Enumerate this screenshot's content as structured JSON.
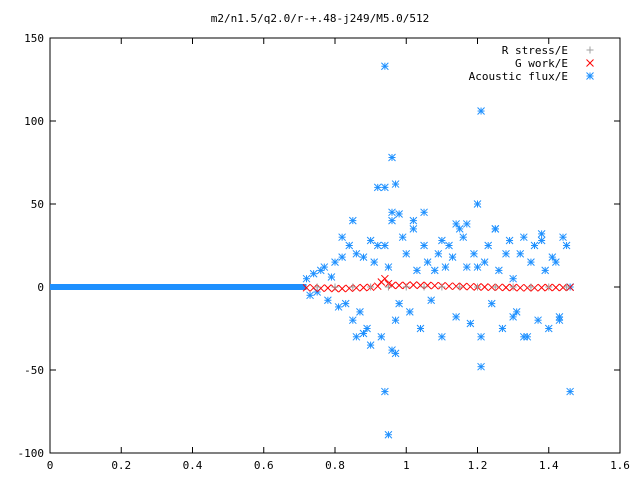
{
  "chart_data": {
    "type": "scatter",
    "title": "m2/n1.5/q2.0/r-+.48-j249/M5.0/512",
    "xlabel": "",
    "ylabel": "",
    "xlim": [
      0,
      1.6
    ],
    "ylim": [
      -100,
      150
    ],
    "x_ticks": [
      "0",
      "0.2",
      "0.4",
      "0.6",
      "0.8",
      "1",
      "1.2",
      "1.4",
      "1.6"
    ],
    "y_ticks": [
      "150",
      "100",
      "50",
      "0",
      "-50",
      "-100"
    ],
    "grid": false,
    "legend_position": "top-right",
    "series": [
      {
        "name": "R stress/E",
        "marker": "plus",
        "color": "#a0a0a0",
        "x": [
          0.75,
          0.8,
          0.85,
          0.9,
          0.95,
          1.0,
          1.05,
          1.1,
          1.15,
          1.2,
          1.25,
          1.3,
          1.35,
          1.4,
          1.45
        ],
        "y": [
          0,
          0,
          0,
          0,
          0,
          0,
          0,
          0,
          0,
          0,
          0,
          0,
          0,
          0,
          0
        ]
      },
      {
        "name": "G work/E",
        "marker": "cross",
        "color": "#ff0000",
        "x": [
          0.72,
          0.74,
          0.76,
          0.78,
          0.8,
          0.82,
          0.84,
          0.86,
          0.88,
          0.9,
          0.92,
          0.93,
          0.94,
          0.95,
          0.96,
          0.98,
          1.0,
          1.02,
          1.04,
          1.06,
          1.08,
          1.1,
          1.12,
          1.14,
          1.16,
          1.18,
          1.2,
          1.22,
          1.24,
          1.26,
          1.28,
          1.3,
          1.32,
          1.34,
          1.36,
          1.38,
          1.4,
          1.42,
          1.44,
          1.46
        ],
        "y": [
          -0.5,
          -0.5,
          -0.8,
          -0.6,
          -1,
          -1,
          -0.8,
          -0.5,
          -0.4,
          -0.2,
          0.5,
          3,
          5,
          2,
          1,
          1,
          1,
          1.2,
          1,
          1,
          0.8,
          0.8,
          0.5,
          0.5,
          0.3,
          0.2,
          0,
          0,
          -0.2,
          -0.2,
          -0.3,
          -0.3,
          -0.5,
          -0.5,
          -0.5,
          -0.4,
          -0.3,
          -0.3,
          -0.3,
          -0.2
        ]
      },
      {
        "name": "Acoustic flux/E",
        "marker": "star",
        "color": "#1e90ff",
        "x": [
          0.72,
          0.73,
          0.74,
          0.75,
          0.76,
          0.77,
          0.78,
          0.79,
          0.8,
          0.81,
          0.82,
          0.83,
          0.84,
          0.85,
          0.86,
          0.87,
          0.88,
          0.89,
          0.9,
          0.91,
          0.92,
          0.93,
          0.94,
          0.95,
          0.96,
          0.97,
          0.98,
          0.99,
          1.0,
          1.01,
          1.02,
          1.03,
          1.04,
          1.05,
          1.06,
          1.07,
          1.08,
          1.09,
          1.1,
          1.11,
          1.12,
          1.13,
          1.14,
          1.15,
          1.16,
          1.17,
          1.18,
          1.19,
          1.2,
          1.21,
          1.22,
          1.23,
          1.24,
          1.25,
          1.26,
          1.27,
          1.28,
          1.29,
          1.3,
          1.31,
          1.32,
          1.33,
          1.34,
          1.35,
          1.36,
          1.37,
          1.38,
          1.39,
          1.4,
          1.41,
          1.42,
          1.43,
          1.44,
          1.45,
          1.46,
          0.96,
          0.97,
          0.98,
          1.21,
          0.92,
          0.94,
          0.96,
          0.97,
          0.86,
          0.94,
          0.95,
          1.21,
          0.94,
          0.96,
          1.1,
          1.17,
          1.46,
          0.85,
          0.9,
          1.05,
          1.25,
          1.33,
          1.38,
          0.82,
          0.88,
          1.02,
          1.14,
          1.2,
          1.3,
          1.43
        ],
        "y": [
          5,
          -5,
          8,
          -3,
          10,
          12,
          -8,
          6,
          15,
          -12,
          18,
          -10,
          25,
          -20,
          20,
          -15,
          18,
          -25,
          28,
          15,
          25,
          -30,
          60,
          12,
          40,
          -20,
          -10,
          30,
          20,
          -15,
          35,
          10,
          -25,
          25,
          15,
          -8,
          10,
          20,
          -30,
          12,
          25,
          18,
          -18,
          35,
          30,
          12,
          -22,
          20,
          50,
          -30,
          15,
          25,
          -10,
          35,
          10,
          -25,
          20,
          28,
          5,
          -15,
          20,
          30,
          -30,
          15,
          25,
          -20,
          32,
          10,
          -25,
          18,
          15,
          -18,
          30,
          25,
          0,
          78,
          62,
          44,
          106,
          60,
          133,
          45,
          -40,
          -30,
          -63,
          -89,
          -48,
          25,
          -38,
          28,
          38,
          -63,
          40,
          -35,
          45,
          35,
          -30,
          28,
          30,
          -28,
          40,
          38,
          12,
          -18,
          -20
        ]
      }
    ],
    "dense_baseline": {
      "color": "#1e90ff",
      "x_range": [
        0,
        0.72
      ],
      "y": 0
    }
  }
}
